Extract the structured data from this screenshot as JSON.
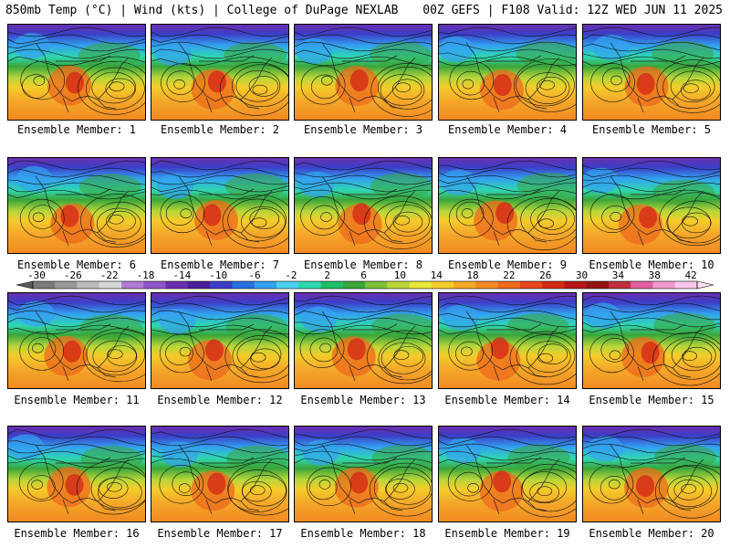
{
  "header": {
    "left": "850mb Temp (°C) | Wind (kts) | College of DuPage NEXLAB",
    "right": "00Z GEFS | F108 Valid: 12Z WED JUN 11 2025"
  },
  "colorbar": {
    "labels": [
      "-30",
      "-26",
      "-22",
      "-18",
      "-14",
      "-10",
      "-6",
      "-2",
      "2",
      "6",
      "10",
      "14",
      "18",
      "22",
      "26",
      "30",
      "34",
      "38",
      "42"
    ],
    "colors": [
      "#7a7a7a",
      "#9a9a9a",
      "#bcbcbc",
      "#d8d8d8",
      "#b07bd6",
      "#9255c8",
      "#6a2fb0",
      "#4b1f9a",
      "#3b3fc8",
      "#2a6fe0",
      "#33a2f0",
      "#4cd0f0",
      "#2fd7b0",
      "#1fbf6a",
      "#3aa63a",
      "#7cc23a",
      "#b8d63a",
      "#e8e83a",
      "#f4cc2a",
      "#f4a82a",
      "#f28a22",
      "#ee6a1c",
      "#e6461a",
      "#d42a16",
      "#b61818",
      "#941414",
      "#c03040",
      "#e060a0",
      "#f09ad0",
      "#f8c8ea"
    ]
  },
  "panels": [
    {
      "label": "Ensemble Member: 1"
    },
    {
      "label": "Ensemble Member: 2"
    },
    {
      "label": "Ensemble Member: 3"
    },
    {
      "label": "Ensemble Member: 4"
    },
    {
      "label": "Ensemble Member: 5"
    },
    {
      "label": "Ensemble Member: 6"
    },
    {
      "label": "Ensemble Member: 7"
    },
    {
      "label": "Ensemble Member: 8"
    },
    {
      "label": "Ensemble Member: 9"
    },
    {
      "label": "Ensemble Member: 10"
    },
    {
      "label": "Ensemble Member: 11"
    },
    {
      "label": "Ensemble Member: 12"
    },
    {
      "label": "Ensemble Member: 13"
    },
    {
      "label": "Ensemble Member: 14"
    },
    {
      "label": "Ensemble Member: 15"
    },
    {
      "label": "Ensemble Member: 16"
    },
    {
      "label": "Ensemble Member: 17"
    },
    {
      "label": "Ensemble Member: 18"
    },
    {
      "label": "Ensemble Member: 19"
    },
    {
      "label": "Ensemble Member: 20"
    }
  ]
}
